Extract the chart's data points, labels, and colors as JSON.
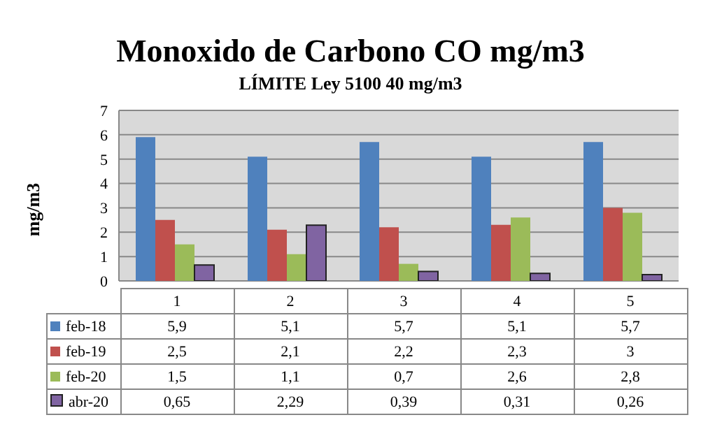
{
  "chart_data": {
    "type": "bar",
    "title": "Monoxido de Carbono CO mg/m3",
    "subtitle": "LÍMITE Ley 5100 40 mg/m3",
    "ylabel": "mg/m3",
    "categories": [
      "1",
      "2",
      "3",
      "4",
      "5"
    ],
    "series": [
      {
        "name": "feb-18",
        "color": "#4f81bd",
        "values": [
          5.9,
          5.1,
          5.7,
          5.1,
          5.7
        ],
        "value_labels": [
          "5,9",
          "5,1",
          "5,7",
          "5,1",
          "5,7"
        ]
      },
      {
        "name": "feb-19",
        "color": "#c0504d",
        "values": [
          2.5,
          2.1,
          2.2,
          2.3,
          3
        ],
        "value_labels": [
          "2,5",
          "2,1",
          "2,2",
          "2,3",
          "3"
        ]
      },
      {
        "name": "feb-20",
        "color": "#9bbb59",
        "values": [
          1.5,
          1.1,
          0.7,
          2.6,
          2.8
        ],
        "value_labels": [
          "1,5",
          "1,1",
          "0,7",
          "2,6",
          "2,8"
        ]
      },
      {
        "name": "abr-20",
        "color": "#8064a2",
        "values": [
          0.65,
          2.29,
          0.39,
          0.31,
          0.26
        ],
        "value_labels": [
          "0,65",
          "2,29",
          "0,39",
          "0,31",
          "0,26"
        ]
      }
    ],
    "ylim": [
      0,
      7
    ],
    "yticks": [
      0,
      1,
      2,
      3,
      4,
      5,
      6,
      7
    ],
    "grid": "y",
    "legend": "bottom"
  }
}
